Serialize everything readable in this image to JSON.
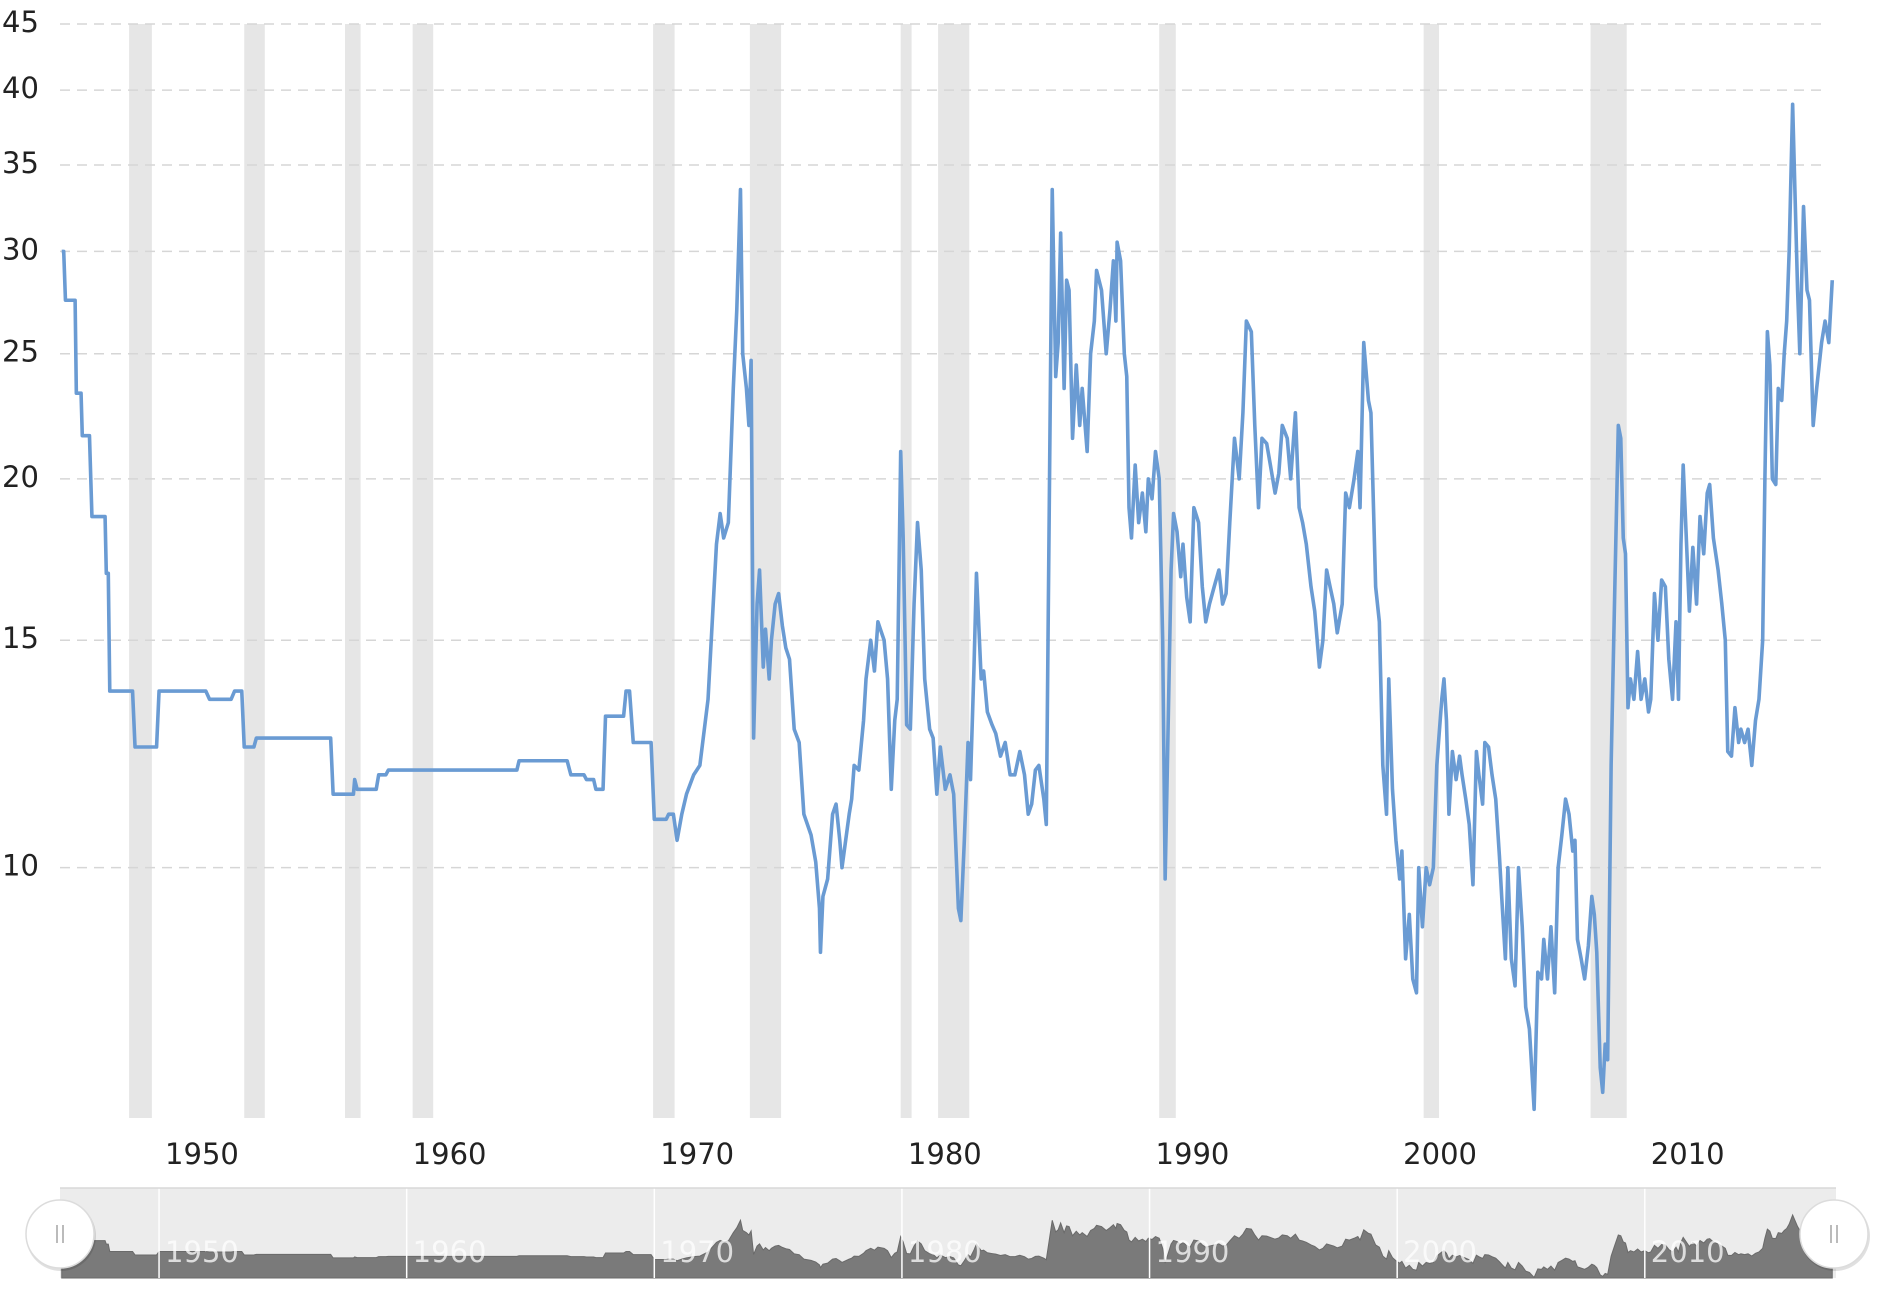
{
  "chart_data": {
    "type": "line",
    "log_scale": true,
    "grid": true,
    "color": "#6a9bd3",
    "recession_color": "#e6e6e6",
    "xlim": [
      1946,
      2017.6
    ],
    "xticks": [
      1950,
      1960,
      1970,
      1980,
      1990,
      2000,
      2010
    ],
    "ylim": [
      6.4,
      45
    ],
    "yticks": [
      10,
      15,
      20,
      25,
      30,
      35,
      40,
      45
    ],
    "recessions": [
      [
        1948.79,
        1949.71
      ],
      [
        1953.44,
        1954.27
      ],
      [
        1957.51,
        1958.14
      ],
      [
        1960.24,
        1961.07
      ],
      [
        1969.95,
        1970.82
      ],
      [
        1973.86,
        1975.12
      ],
      [
        1979.95,
        1980.39
      ],
      [
        1981.46,
        1982.72
      ],
      [
        1990.39,
        1991.06
      ],
      [
        2001.07,
        2001.69
      ],
      [
        2007.81,
        2009.27
      ]
    ],
    "x": [
      1946.07,
      1946.15,
      1946.22,
      1946.61,
      1946.66,
      1946.85,
      1946.9,
      1947.19,
      1947.29,
      1947.82,
      1947.87,
      1947.95,
      1948.01,
      1948.93,
      1949.03,
      1949.9,
      1950,
      1951.89,
      1952.04,
      1952.91,
      1953.05,
      1953.34,
      1953.44,
      1953.83,
      1953.93,
      1956.93,
      1957.03,
      1957.85,
      1957.9,
      1958,
      1958.77,
      1958.87,
      1959.16,
      1959.26,
      1964.45,
      1964.54,
      1966.48,
      1966.63,
      1967.16,
      1967.26,
      1967.55,
      1967.64,
      1967.93,
      1968.03,
      1968.76,
      1968.86,
      1969,
      1969.15,
      1969.87,
      1970,
      1970.48,
      1970.58,
      1970.77,
      1970.92,
      1971.11,
      1971.3,
      1971.59,
      1971.84,
      1972.17,
      1972.51,
      1972.66,
      1972.8,
      1972.99,
      1973.19,
      1973.33,
      1973.48,
      1973.57,
      1973.72,
      1973.82,
      1973.91,
      1974.01,
      1974.15,
      1974.25,
      1974.4,
      1974.49,
      1974.64,
      1974.73,
      1974.88,
      1975.02,
      1975.17,
      1975.31,
      1975.46,
      1975.65,
      1975.85,
      1976.04,
      1976.33,
      1976.52,
      1976.67,
      1976.71,
      1976.81,
      1977,
      1977.2,
      1977.34,
      1977.49,
      1977.58,
      1977.87,
      1977.97,
      1978.07,
      1978.26,
      1978.45,
      1978.55,
      1978.74,
      1978.89,
      1979.03,
      1979.28,
      1979.42,
      1979.57,
      1979.71,
      1979.81,
      1979.95,
      1980.05,
      1980.19,
      1980.34,
      1980.49,
      1980.63,
      1980.78,
      1980.92,
      1981.12,
      1981.26,
      1981.41,
      1981.55,
      1981.75,
      1981.94,
      1982.09,
      1982.28,
      1982.38,
      1982.52,
      1982.67,
      1982.77,
      1982.91,
      1983.01,
      1983.2,
      1983.3,
      1983.45,
      1983.64,
      1983.79,
      1983.98,
      1984.17,
      1984.37,
      1984.56,
      1984.76,
      1984.95,
      1985.1,
      1985.24,
      1985.39,
      1985.53,
      1985.73,
      1985.83,
      1986.07,
      1986.21,
      1986.31,
      1986.41,
      1986.55,
      1986.65,
      1986.75,
      1986.89,
      1987.04,
      1987.18,
      1987.28,
      1987.48,
      1987.62,
      1987.77,
      1987.86,
      1988.06,
      1988.25,
      1988.4,
      1988.54,
      1988.64,
      1988.69,
      1988.83,
      1988.98,
      1989.08,
      1989.17,
      1989.27,
      1989.42,
      1989.56,
      1989.71,
      1989.85,
      1989.95,
      1990.1,
      1990.24,
      1990.39,
      1990.53,
      1990.63,
      1990.72,
      1990.87,
      1990.97,
      1991.11,
      1991.26,
      1991.35,
      1991.5,
      1991.64,
      1991.79,
      1991.98,
      1992.13,
      1992.27,
      1992.42,
      1992.61,
      1992.8,
      1992.95,
      1993.09,
      1993.24,
      1993.43,
      1993.62,
      1993.77,
      1993.91,
      1994.11,
      1994.25,
      1994.4,
      1994.54,
      1994.73,
      1994.88,
      1995.07,
      1995.22,
      1995.36,
      1995.56,
      1995.7,
      1995.89,
      1996.04,
      1996.18,
      1996.33,
      1996.52,
      1996.67,
      1996.86,
      1997,
      1997.15,
      1997.29,
      1997.44,
      1997.58,
      1997.78,
      1997.92,
      1998.07,
      1998.26,
      1998.41,
      1998.5,
      1998.65,
      1998.84,
      1998.94,
      1999.13,
      1999.28,
      1999.42,
      1999.57,
      1999.66,
      1999.81,
      1999.95,
      2000.1,
      2000.19,
      2000.34,
      2000.49,
      2000.63,
      2000.78,
      2000.87,
      2001.02,
      2001.17,
      2001.31,
      2001.46,
      2001.6,
      2001.8,
      2001.89,
      2001.99,
      2002.09,
      2002.23,
      2002.38,
      2002.52,
      2002.62,
      2002.77,
      2002.91,
      2003.06,
      2003.2,
      2003.3,
      2003.45,
      2003.54,
      2003.69,
      2003.83,
      2003.98,
      2004.13,
      2004.22,
      2004.37,
      2004.47,
      2004.61,
      2004.76,
      2004.9,
      2005.05,
      2005.19,
      2005.34,
      2005.53,
      2005.68,
      2005.83,
      2005.92,
      2006.07,
      2006.21,
      2006.36,
      2006.5,
      2006.65,
      2006.8,
      2006.94,
      2007.09,
      2007.18,
      2007.28,
      2007.43,
      2007.57,
      2007.72,
      2007.86,
      2007.96,
      2008.06,
      2008.2,
      2008.3,
      2008.4,
      2008.5,
      2008.64,
      2008.79,
      2008.93,
      2009.03,
      2009.13,
      2009.22,
      2009.32,
      2009.42,
      2009.56,
      2009.71,
      2009.85,
      2010,
      2010.15,
      2010.24,
      2010.39,
      2010.53,
      2010.68,
      2010.83,
      2010.97,
      2011.12,
      2011.26,
      2011.36,
      2011.46,
      2011.55,
      2011.65,
      2011.8,
      2011.94,
      2012.09,
      2012.23,
      2012.38,
      2012.52,
      2012.62,
      2012.77,
      2012.96,
      2013.11,
      2013.25,
      2013.35,
      2013.5,
      2013.64,
      2013.79,
      2013.88,
      2014.03,
      2014.17,
      2014.32,
      2014.47,
      2014.61,
      2014.76,
      2014.85,
      2014.95,
      2015.05,
      2015.15,
      2015.29,
      2015.39,
      2015.53,
      2015.63,
      2015.73,
      2015.83,
      2015.97,
      2016.07,
      2016.17,
      2016.26,
      2016.41,
      2016.55,
      2016.65,
      2016.8,
      2016.94,
      2017.14,
      2017.28,
      2017.43,
      2017.57
    ],
    "values": [
      30,
      30,
      27.5,
      27.5,
      23.3,
      23.3,
      21.6,
      21.6,
      18.7,
      18.7,
      16.9,
      16.9,
      13.7,
      13.7,
      12.4,
      12.4,
      13.7,
      13.7,
      13.5,
      13.5,
      13.7,
      13.7,
      12.4,
      12.4,
      12.6,
      12.6,
      11.4,
      11.4,
      11.7,
      11.5,
      11.5,
      11.8,
      11.8,
      11.9,
      11.9,
      12.1,
      12.1,
      11.8,
      11.8,
      11.7,
      11.7,
      11.5,
      11.5,
      13.1,
      13.1,
      13.7,
      13.7,
      12.5,
      12.5,
      10.9,
      10.9,
      11,
      11,
      10.5,
      11,
      11.4,
      11.8,
      12,
      13.5,
      17.8,
      18.8,
      18,
      18.5,
      23.5,
      27,
      33.5,
      25,
      23.5,
      22,
      24.7,
      12.6,
      16,
      17,
      14.3,
      15.3,
      14,
      15,
      16,
      16.3,
      15.4,
      14.8,
      14.5,
      12.8,
      12.5,
      11,
      10.6,
      10.1,
      9.3,
      8.6,
      9.5,
      9.8,
      11,
      11.2,
      10.5,
      10,
      11,
      11.3,
      12,
      11.9,
      13,
      14,
      15,
      14.2,
      15.5,
      15,
      14,
      11.5,
      13,
      13.5,
      21,
      18,
      12.9,
      12.8,
      16,
      18.5,
      17,
      14,
      12.8,
      12.6,
      11.4,
      12.4,
      11.5,
      11.8,
      11.4,
      9.3,
      9.1,
      10.5,
      12.5,
      11.7,
      14.3,
      16.9,
      14,
      14.2,
      13.2,
      12.9,
      12.7,
      12.2,
      12.5,
      11.8,
      11.8,
      12.3,
      11.8,
      11,
      11.2,
      11.9,
      12,
      11.3,
      10.8,
      33.5,
      24,
      25.5,
      31,
      23.5,
      28.5,
      28,
      21.5,
      24.5,
      22,
      23.5,
      21,
      25,
      26.5,
      29,
      28,
      25,
      27,
      29.5,
      26.5,
      30.5,
      29.5,
      25,
      24,
      19,
      18,
      20.5,
      18.5,
      19.5,
      18.2,
      20,
      19.3,
      21,
      20,
      15,
      9.8,
      12,
      17,
      18.8,
      18.2,
      16.8,
      17.8,
      16.2,
      15.5,
      19,
      18.5,
      16.5,
      15.5,
      16,
      16.5,
      17,
      16,
      16.3,
      18.5,
      21.5,
      20,
      22.5,
      26.5,
      26,
      22,
      19,
      21.5,
      21.3,
      20.5,
      19.5,
      20.2,
      22,
      21.5,
      20,
      22.5,
      19,
      18.5,
      17.8,
      16.5,
      15.8,
      14.3,
      15,
      17,
      16.5,
      16,
      15.2,
      16,
      19.5,
      19,
      20,
      21,
      19,
      25.5,
      23,
      22.5,
      16.5,
      15.5,
      12,
      11,
      14,
      11.5,
      10.5,
      9.8,
      10.3,
      8.5,
      9.2,
      8.2,
      8,
      10,
      9,
      10,
      9.7,
      10,
      12,
      13.5,
      14,
      13,
      11,
      12.3,
      11.7,
      12.2,
      11.8,
      11.3,
      10.8,
      9.7,
      12.3,
      11.8,
      11.2,
      12.5,
      12.4,
      11.8,
      11.3,
      10.2,
      9.5,
      8.5,
      10,
      8.5,
      8.1,
      10,
      9,
      7.8,
      7.5,
      6.5,
      8.3,
      8.2,
      8.8,
      8.2,
      9,
      8,
      10,
      10.6,
      11.3,
      11,
      10.3,
      10.5,
      8.8,
      8.5,
      8.2,
      8.7,
      9.5,
      9.2,
      8.6,
      7,
      6.7,
      7.3,
      7.1,
      12,
      16.5,
      22,
      21.5,
      18,
      17.5,
      13.3,
      14,
      13.5,
      14.7,
      13.5,
      14,
      13.2,
      13.5,
      16.3,
      15,
      16.7,
      16.5,
      14.5,
      13.5,
      15.5,
      13.5,
      17.8,
      20.5,
      18.5,
      15.8,
      17.7,
      16,
      18.7,
      17.5,
      19.5,
      19.8,
      18,
      17,
      16,
      15,
      12.3,
      12.2,
      13.3,
      12.5,
      12.8,
      12.5,
      12.8,
      12,
      13,
      13.5,
      15,
      20,
      26,
      24.5,
      20,
      19.8,
      23.5,
      23,
      25,
      26.5,
      30,
      39,
      33,
      28,
      25,
      32.5,
      28,
      27.5,
      22,
      23.5,
      25.5,
      26.5,
      25.5,
      28.5
    ]
  }
}
